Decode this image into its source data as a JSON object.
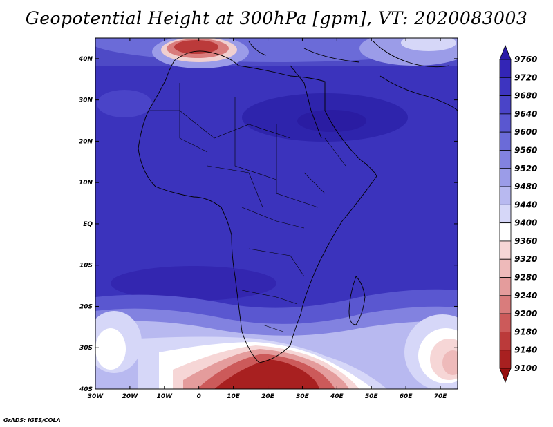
{
  "title": "Geopotential Height at 300hPa [gpm], VT: 2020083003",
  "credit": "GrADS: IGES/COLA",
  "map": {
    "lon_labels": [
      "30W",
      "20W",
      "10W",
      "0",
      "10E",
      "20E",
      "30E",
      "40E",
      "50E",
      "60E",
      "70E"
    ],
    "lat_labels": [
      "40N",
      "30N",
      "20N",
      "10N",
      "EQ",
      "10S",
      "20S",
      "30S",
      "40S"
    ],
    "lon_range": [
      -30,
      75
    ],
    "lat_range": [
      -40,
      45
    ]
  },
  "colorbar": {
    "levels": [
      "9760",
      "9720",
      "9680",
      "9640",
      "9600",
      "9560",
      "9520",
      "9480",
      "9440",
      "9400",
      "9360",
      "9320",
      "9280",
      "9240",
      "9200",
      "9180",
      "9140",
      "9100"
    ],
    "colors": [
      "#2b1ba8",
      "#3325b6",
      "#3d34c0",
      "#4a44c8",
      "#5a57d0",
      "#6b6bd8",
      "#8282e0",
      "#9b9ce8",
      "#b8b9f0",
      "#d6d7f8",
      "#ffffff",
      "#f6d6d6",
      "#eebaba",
      "#e49c9c",
      "#d97c7c",
      "#cc5a5a",
      "#bb3a3a",
      "#a82020",
      "#961010"
    ]
  }
}
